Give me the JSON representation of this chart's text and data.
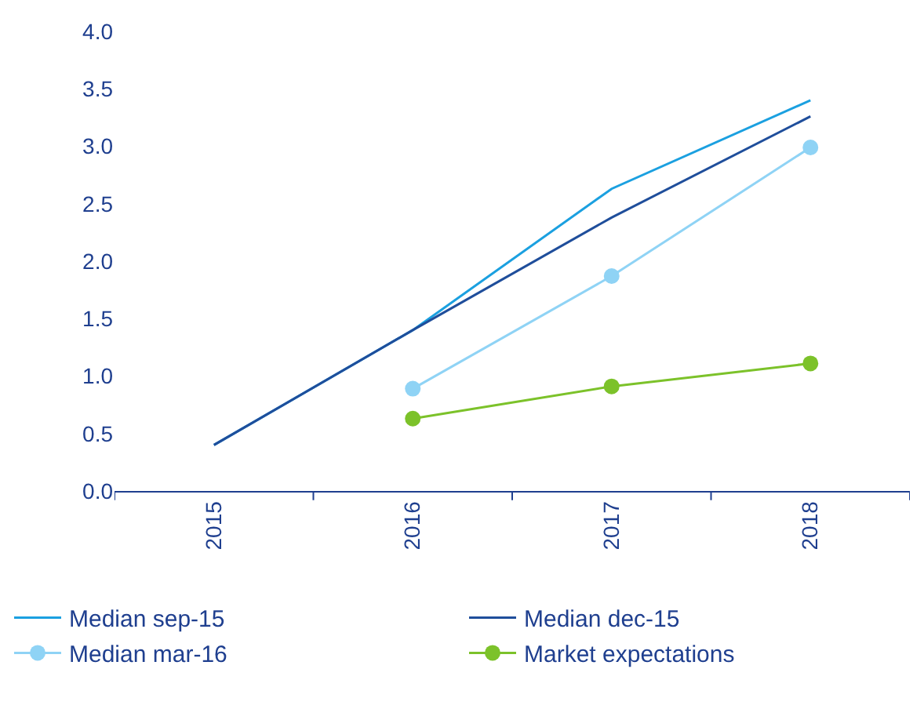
{
  "chart_data": {
    "type": "line",
    "categories": [
      "2015",
      "2016",
      "2017",
      "2018"
    ],
    "ylim": [
      0,
      4
    ],
    "yticks": [
      {
        "value": 0,
        "label": "0.0"
      },
      {
        "value": 0.5,
        "label": "0.5"
      },
      {
        "value": 1,
        "label": "1.0"
      },
      {
        "value": 1.5,
        "label": "1.5"
      },
      {
        "value": 2,
        "label": "2.0"
      },
      {
        "value": 2.5,
        "label": "2.5"
      },
      {
        "value": 3,
        "label": "3.0"
      },
      {
        "value": 3.5,
        "label": "3.5"
      },
      {
        "value": 4,
        "label": "4.0"
      }
    ],
    "legend": "bottom",
    "series": [
      {
        "name": "Median sep-15",
        "color": "#1ba0e0",
        "marker": "none",
        "values": [
          0.4,
          1.4,
          2.63,
          3.4
        ]
      },
      {
        "name": "Median dec-15",
        "color": "#1f4e9b",
        "marker": "none",
        "values": [
          0.4,
          1.4,
          2.38,
          3.26
        ]
      },
      {
        "name": "Median mar-16",
        "color": "#8fd3f5",
        "marker": "circle",
        "values": [
          null,
          0.89,
          1.87,
          2.99
        ]
      },
      {
        "name": "Market expectations",
        "color": "#7cc22a",
        "marker": "circle",
        "values": [
          null,
          0.63,
          0.91,
          1.11
        ]
      }
    ]
  }
}
